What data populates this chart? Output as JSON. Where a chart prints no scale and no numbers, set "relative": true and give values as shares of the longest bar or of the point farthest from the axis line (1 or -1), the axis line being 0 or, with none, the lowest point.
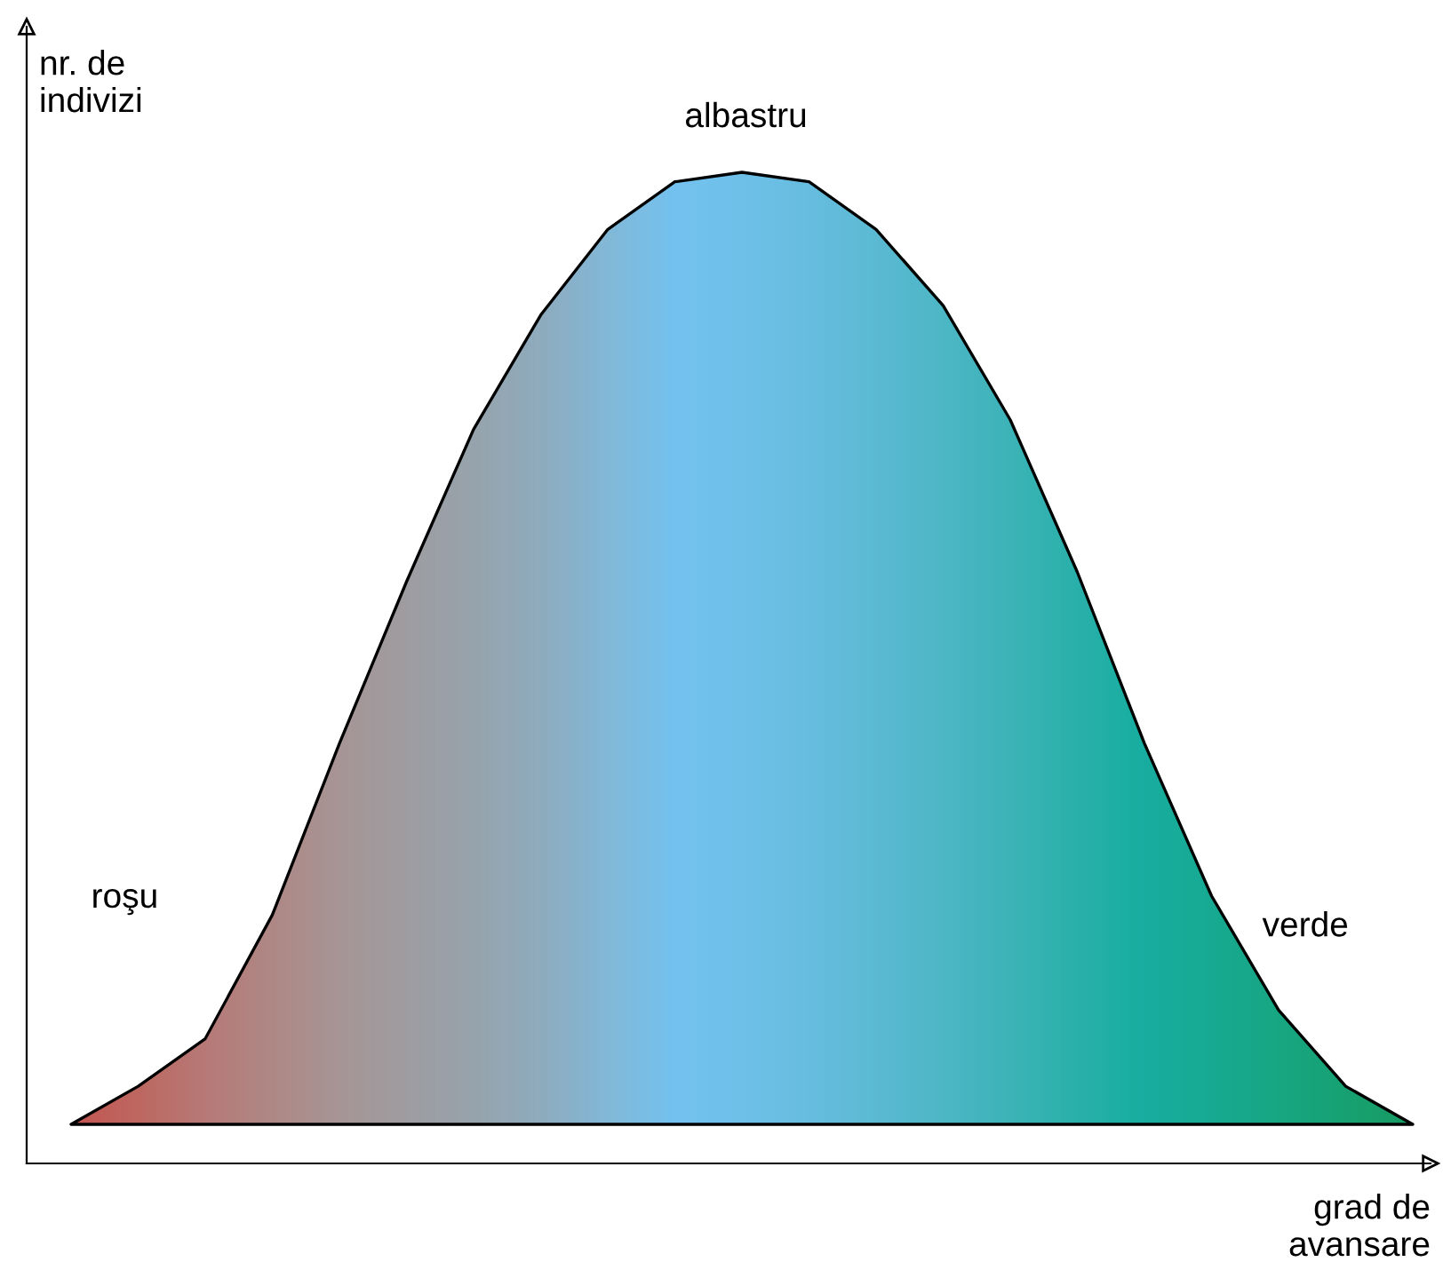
{
  "chart_data": {
    "type": "area",
    "relative": true,
    "xlabel": "grad de\navansare",
    "ylabel": "nr. de\nindivizi",
    "categories": [
      null,
      null,
      null,
      null,
      null,
      null,
      null,
      null,
      null,
      null,
      null,
      null,
      null,
      null,
      null,
      null,
      null,
      null,
      null,
      null,
      null
    ],
    "series": [
      {
        "color": "#74c2f0",
        "values": [
          0,
          0.04,
          0.09,
          0.22,
          0.4,
          0.57,
          0.73,
          0.85,
          0.94,
          0.99,
          1.0,
          0.99,
          0.94,
          0.86,
          0.74,
          0.58,
          0.4,
          0.24,
          0.12,
          0.04,
          0
        ],
        "colors": [
          "#d83a2a",
          "#d0523e",
          "#c8685a",
          "#be7a6c",
          "#b48a80",
          "#aa948e",
          "#a09c9c",
          "#96a6b2",
          "#86b6d2",
          "#74c2f0",
          "#6ec0e8",
          "#64bcdc",
          "#56b8cc",
          "#44b4bc",
          "#30b0aa",
          "#18ac9a",
          "#00a88c",
          "#00a47c",
          "#00a068",
          "#009a54",
          "#009040"
        ]
      }
    ],
    "annotations": [
      "roşu",
      "albastru",
      "verde"
    ],
    "line_style": "solid"
  }
}
